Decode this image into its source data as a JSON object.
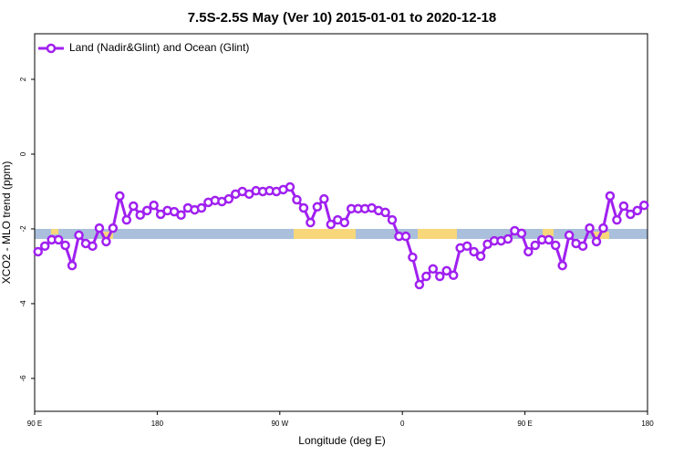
{
  "chart_data": {
    "type": "line",
    "title": "7.5S-2.5S May (Ver 10)   2015-01-01 to 2020-12-18",
    "xlabel": "Longitude (deg E)",
    "ylabel": "XCO2 - MLO trend (ppm)",
    "xlim": [
      90,
      540
    ],
    "ylim": [
      -6.88,
      3.22
    ],
    "xticks": [
      {
        "value": 90,
        "label": "90 E"
      },
      {
        "value": 180,
        "label": "180"
      },
      {
        "value": 270,
        "label": "90 W"
      },
      {
        "value": 360,
        "label": "0"
      },
      {
        "value": 450,
        "label": "90 E"
      },
      {
        "value": 540,
        "label": "180"
      }
    ],
    "yticks": [
      2,
      0,
      -2,
      -4,
      -6
    ],
    "legend": "top-left",
    "x": [
      92.5,
      97.5,
      102.5,
      107.5,
      112.5,
      117.5,
      122.5,
      127.5,
      132.5,
      137.5,
      142.5,
      147.5,
      152.5,
      157.5,
      162.5,
      167.5,
      172.5,
      177.5,
      182.5,
      187.5,
      192.5,
      197.5,
      202.5,
      207.5,
      212.5,
      217.5,
      222.5,
      227.5,
      232.5,
      237.5,
      242.5,
      247.5,
      252.5,
      257.5,
      262.5,
      267.5,
      272.5,
      277.5,
      282.5,
      287.5,
      292.5,
      297.5,
      302.5,
      307.5,
      312.5,
      317.5,
      322.5,
      327.5,
      332.5,
      337.5,
      342.5,
      347.5,
      352.5,
      357.5,
      362.5,
      367.5,
      372.5,
      377.5,
      382.5,
      387.5,
      392.5,
      397.5,
      402.5,
      407.5,
      412.5,
      417.5,
      422.5,
      427.5,
      432.5,
      437.5,
      442.5,
      447.5,
      452.5,
      457.5,
      462.5,
      467.5,
      472.5,
      477.5,
      482.5,
      487.5,
      492.5,
      497.5,
      502.5,
      507.5,
      512.5,
      517.5,
      522.5,
      527.5,
      532.5,
      537.5
    ],
    "series": [
      {
        "name": "Land (Nadir&Glint) and Ocean (Glint)",
        "color": "#a020f0",
        "values": [
          -2.61,
          -2.46,
          -2.29,
          -2.29,
          -2.44,
          -2.98,
          -2.17,
          -2.39,
          -2.46,
          -1.98,
          -2.34,
          -1.98,
          -1.12,
          -1.76,
          -1.39,
          -1.63,
          -1.51,
          -1.37,
          -1.61,
          -1.51,
          -1.54,
          -1.63,
          -1.44,
          -1.49,
          -1.44,
          -1.29,
          -1.24,
          -1.27,
          -1.2,
          -1.07,
          -1.0,
          -1.07,
          -0.98,
          -1.0,
          -0.98,
          -1.0,
          -0.95,
          -0.88,
          -1.22,
          -1.44,
          -1.83,
          -1.41,
          -1.2,
          -1.88,
          -1.76,
          -1.83,
          -1.46,
          -1.46,
          -1.46,
          -1.44,
          -1.51,
          -1.56,
          -1.76,
          -2.2,
          -2.2,
          -2.76,
          -3.49,
          -3.27,
          -3.07,
          -3.27,
          -3.12,
          -3.24,
          -2.51,
          -2.46,
          -2.61,
          -2.73,
          -2.41,
          -2.32,
          -2.32,
          -2.27,
          -2.05,
          -2.12,
          -2.61,
          -2.44,
          -2.29,
          -2.29,
          -2.44,
          -2.98,
          -2.17,
          -2.39,
          -2.46,
          -1.98,
          -2.34,
          -1.98,
          -1.12,
          -1.76,
          -1.39,
          -1.61,
          -1.51,
          -1.37
        ]
      }
    ]
  }
}
